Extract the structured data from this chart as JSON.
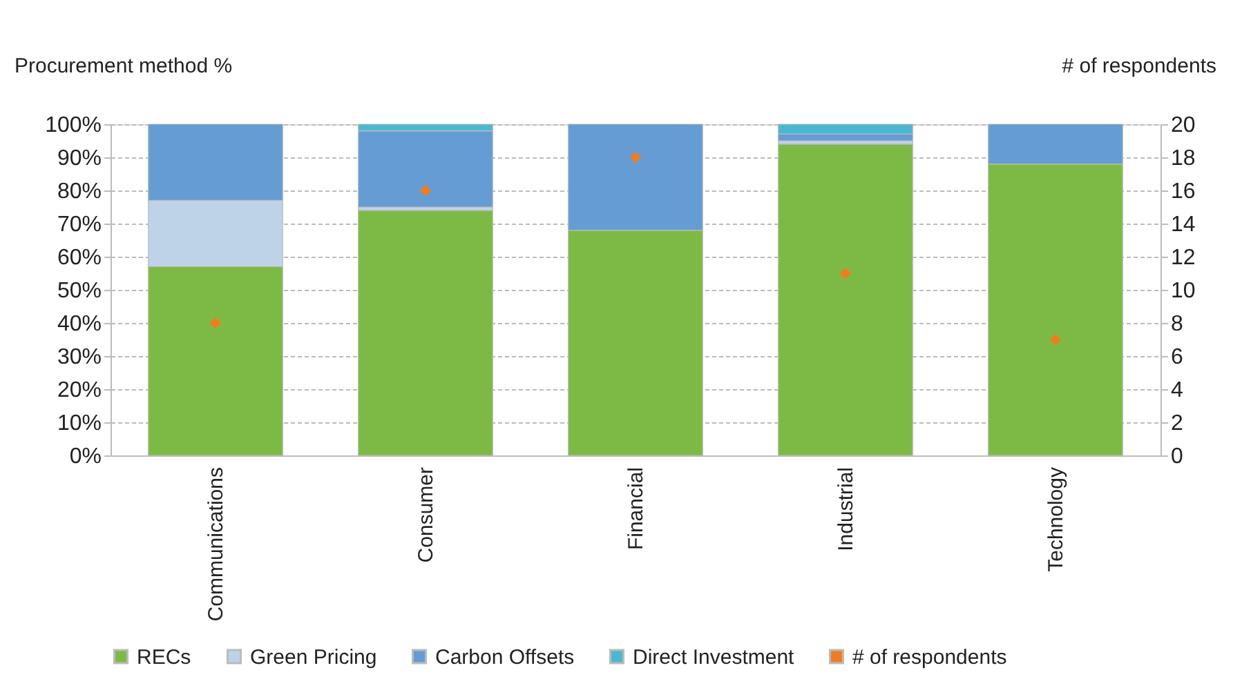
{
  "chart_data": {
    "type": "bar",
    "stacked": true,
    "ylabel": "Procurement method %",
    "y2label": "# of respondents",
    "categories": [
      "Communications",
      "Consumer",
      "Financial",
      "Industrial",
      "Technology"
    ],
    "series": [
      {
        "name": "RECs",
        "color": "#7dba45",
        "values": [
          57,
          74,
          68,
          94,
          88
        ]
      },
      {
        "name": "Green Pricing",
        "color": "#bfd3e8",
        "values": [
          20,
          1,
          0,
          1,
          0
        ]
      },
      {
        "name": "Carbon Offsets",
        "color": "#659cd4",
        "values": [
          23,
          23,
          32,
          2,
          12
        ]
      },
      {
        "name": "Direct Investment",
        "color": "#4bb8d0",
        "values": [
          0,
          2,
          0,
          3,
          0
        ]
      },
      {
        "name": "# of respondents",
        "type": "scatter",
        "axis": "y2",
        "marker": "diamond",
        "color": "#f07c22",
        "values": [
          8,
          16,
          18,
          11,
          7
        ]
      }
    ],
    "ylim": [
      0,
      100
    ],
    "yticks": [
      {
        "value": 0,
        "label": "0%"
      },
      {
        "value": 10,
        "label": "10%"
      },
      {
        "value": 20,
        "label": "20%"
      },
      {
        "value": 30,
        "label": "30%"
      },
      {
        "value": 40,
        "label": "40%"
      },
      {
        "value": 50,
        "label": "50%"
      },
      {
        "value": 60,
        "label": "60%"
      },
      {
        "value": 70,
        "label": "70%"
      },
      {
        "value": 80,
        "label": "80%"
      },
      {
        "value": 90,
        "label": "90%"
      },
      {
        "value": 100,
        "label": "100%"
      }
    ],
    "y2lim": [
      0,
      20
    ],
    "y2ticks": [
      0,
      2,
      4,
      6,
      8,
      10,
      12,
      14,
      16,
      18,
      20
    ],
    "grid": "y",
    "legend": "bottom"
  }
}
